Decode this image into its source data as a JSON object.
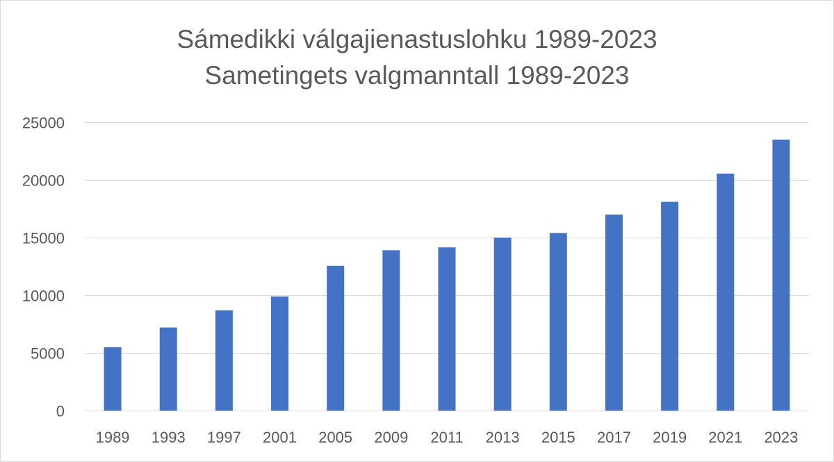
{
  "chart_data": {
    "type": "bar",
    "title": [
      "Sámedikki válgajienastuslohku 1989-2023",
      "Sametingets valgmanntall 1989-2023"
    ],
    "xlabel": "",
    "ylabel": "",
    "categories": [
      "1989",
      "1993",
      "1997",
      "2001",
      "2005",
      "2009",
      "2011",
      "2013",
      "2015",
      "2017",
      "2019",
      "2021",
      "2023"
    ],
    "values": [
      5500,
      7200,
      8700,
      9900,
      12550,
      13900,
      14150,
      15000,
      15400,
      17000,
      18100,
      20550,
      23500
    ],
    "ylim": [
      0,
      25000
    ],
    "yticks": [
      "0",
      "5000",
      "10000",
      "15000",
      "20000",
      "25000"
    ],
    "grid": true,
    "legend": "none",
    "bar_color": "#4472c4"
  }
}
